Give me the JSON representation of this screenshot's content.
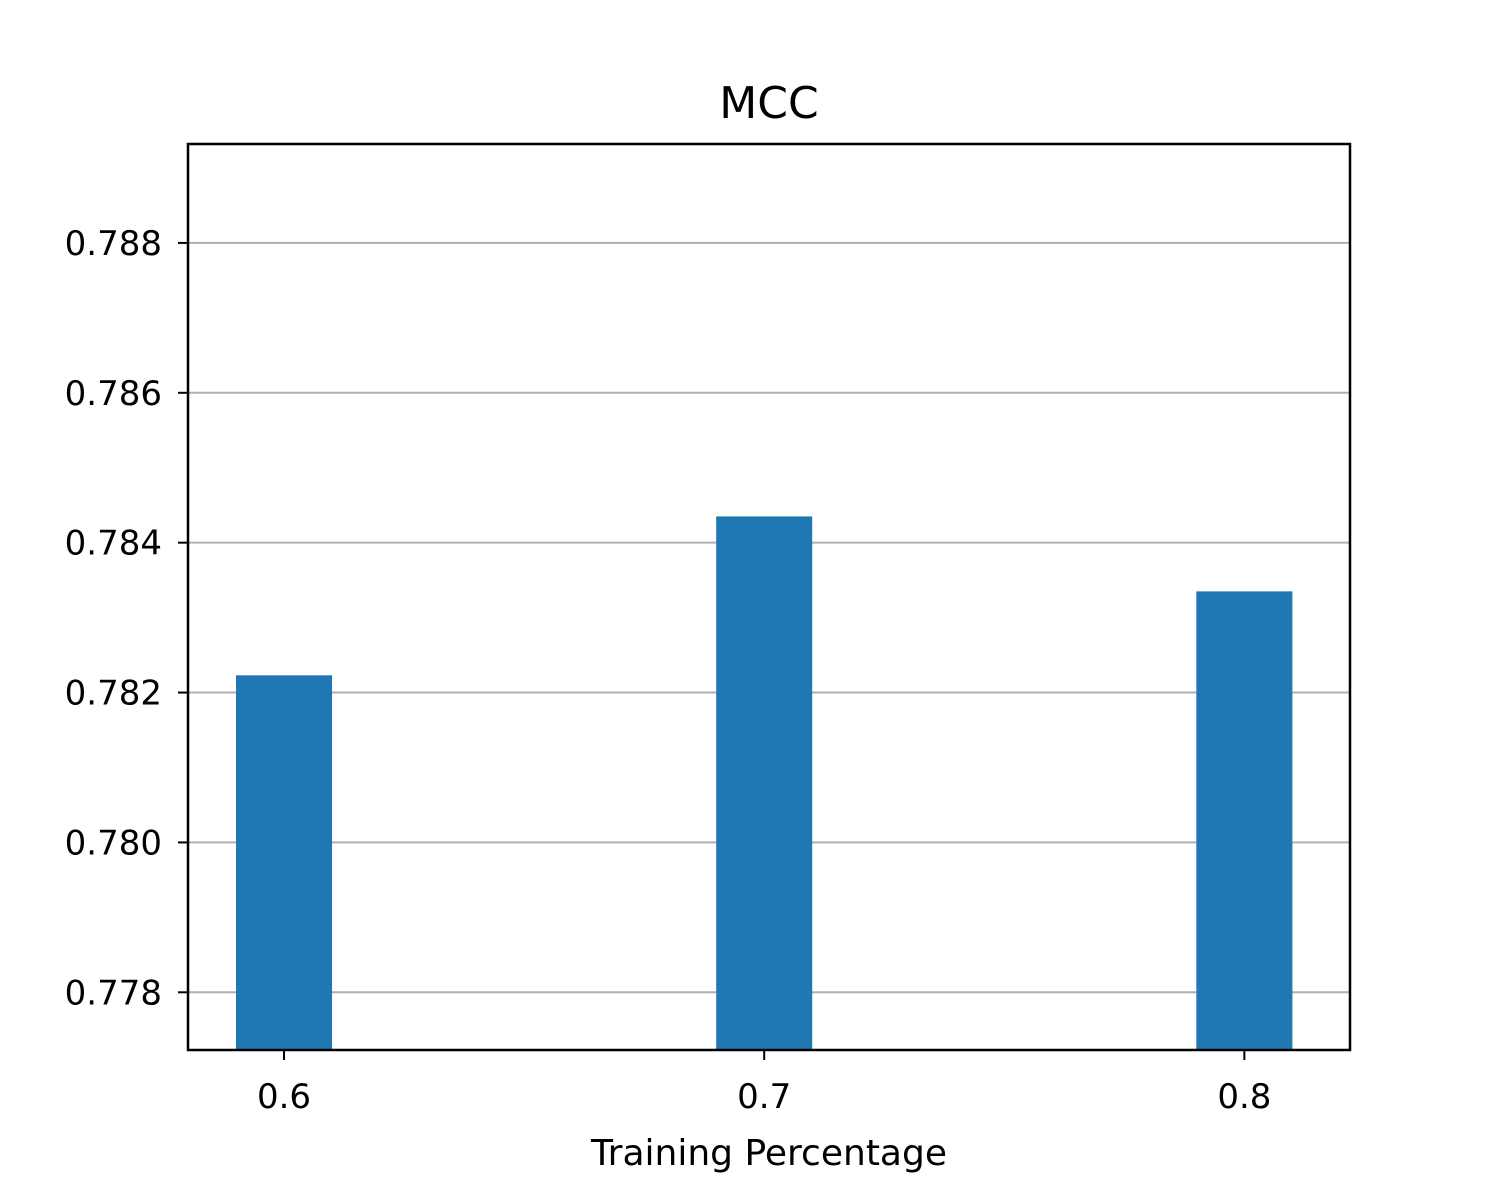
{
  "chart_data": {
    "type": "bar",
    "title": "MCC",
    "xlabel": "Training Percentage",
    "ylabel": "",
    "categories": [
      "0.6",
      "0.7",
      "0.8"
    ],
    "x": [
      0.6,
      0.7,
      0.8
    ],
    "values": [
      0.78223,
      0.78435,
      0.78335
    ],
    "xlim": [
      0.58,
      0.822
    ],
    "ylim": [
      0.77723,
      0.78932
    ],
    "yticks": [
      0.778,
      0.78,
      0.782,
      0.784,
      0.786,
      0.788
    ],
    "ytick_labels": [
      "0.778",
      "0.780",
      "0.782",
      "0.784",
      "0.786",
      "0.788"
    ],
    "bar_width": 0.02,
    "grid": {
      "y": true,
      "x": false
    },
    "bar_color": "#1f77b4"
  }
}
